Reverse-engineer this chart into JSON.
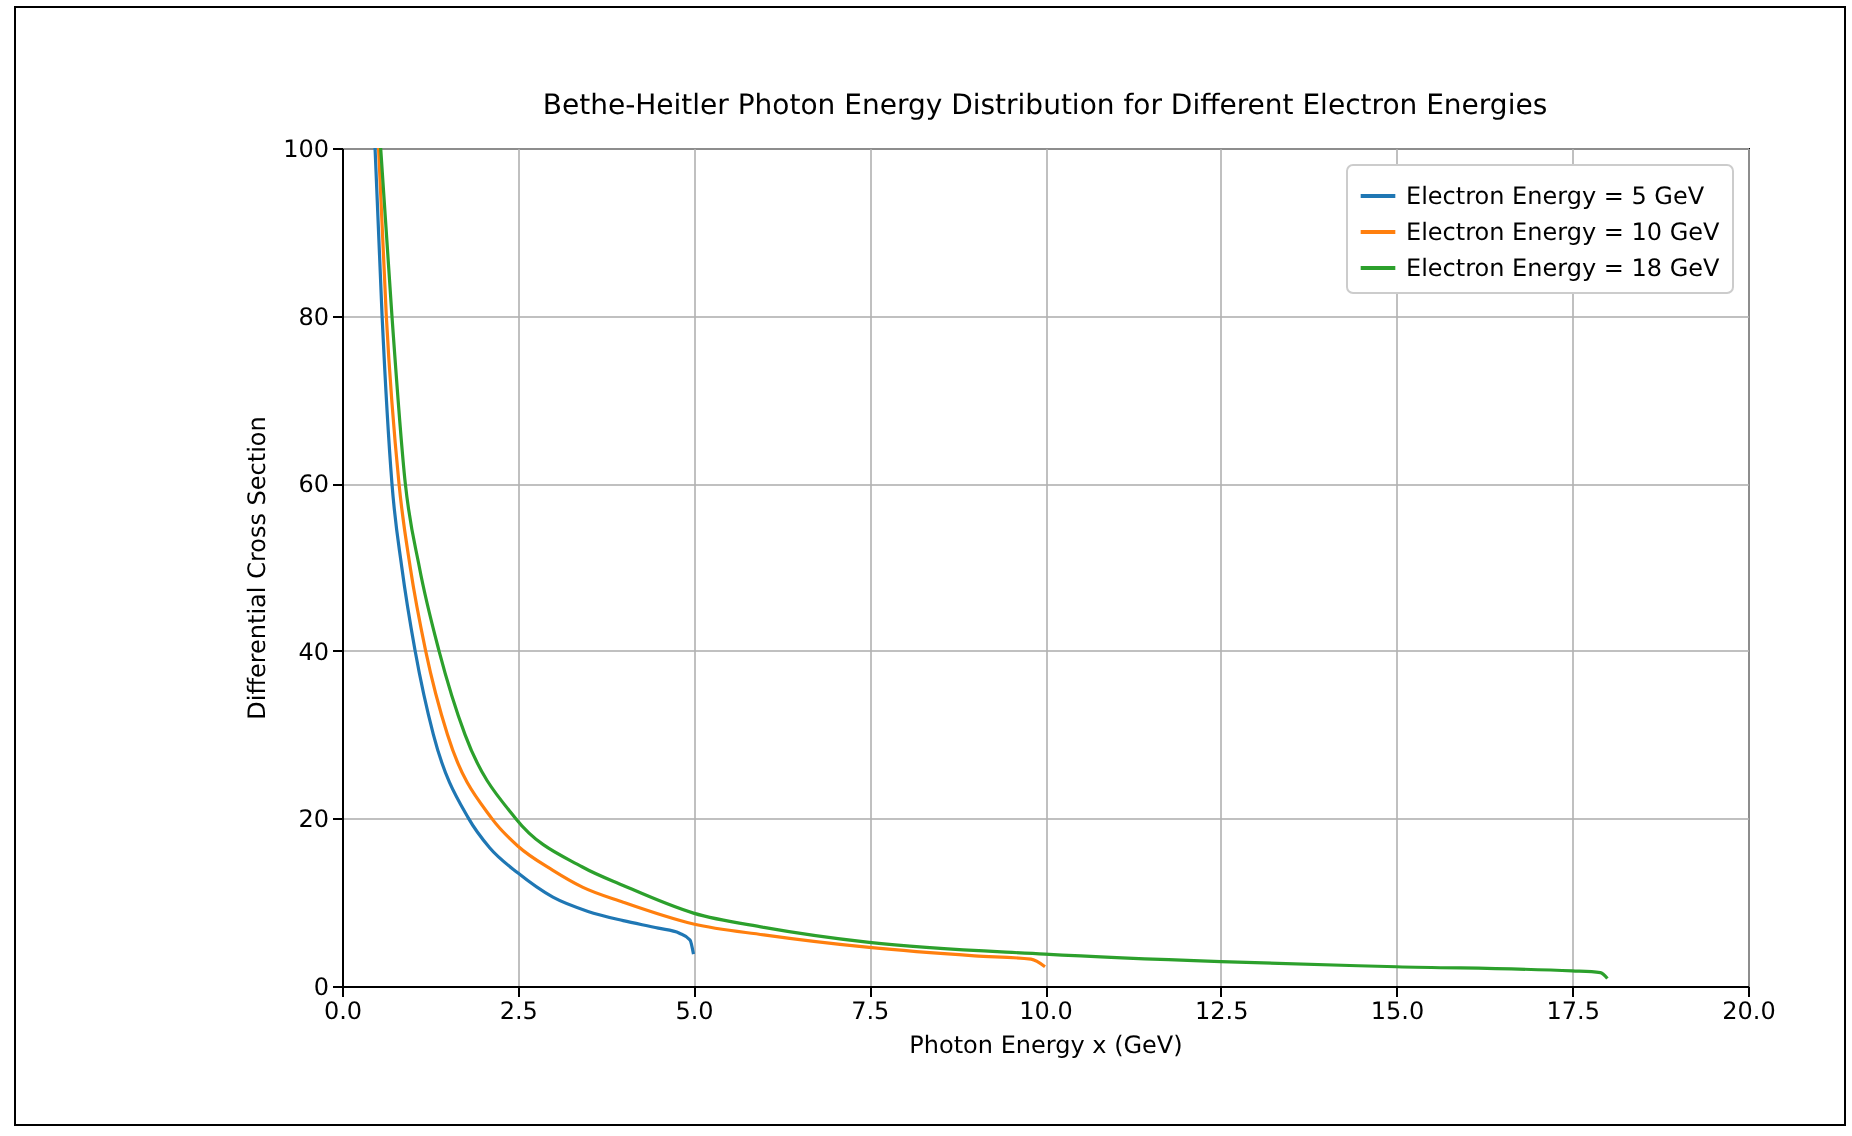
{
  "chart_data": {
    "type": "line",
    "title": "Bethe-Heitler Photon Energy Distribution for Different Electron Energies",
    "xlabel": "Photon Energy x (GeV)",
    "ylabel": "Differential Cross Section",
    "xlim": [
      0,
      20
    ],
    "xticks": [
      {
        "value": 0,
        "label": "0.0"
      },
      {
        "value": 2.5,
        "label": "2.5"
      },
      {
        "value": 5,
        "label": "5.0"
      },
      {
        "value": 7.5,
        "label": "7.5"
      },
      {
        "value": 10,
        "label": "10.0"
      },
      {
        "value": 12.5,
        "label": "12.5"
      },
      {
        "value": 15,
        "label": "15.0"
      },
      {
        "value": 17.5,
        "label": "17.5"
      },
      {
        "value": 20,
        "label": "20.0"
      }
    ],
    "ylim": [
      0,
      100
    ],
    "yticks": [
      0,
      20,
      40,
      60,
      80,
      100
    ],
    "grid": true,
    "legend": "top right",
    "series": [
      {
        "name": "Electron Energy = 5 GeV",
        "color": "#1f77b4",
        "x": [
          0.47,
          0.57,
          0.71,
          0.85,
          1.04,
          1.3,
          1.8,
          2.1,
          2.5,
          3.0,
          3.5,
          4.0,
          4.5,
          4.8,
          4.95,
          5.0
        ],
        "values": [
          100,
          80,
          60,
          50,
          40,
          30,
          20,
          16.5,
          13.5,
          10.6,
          8.9,
          7.8,
          6.9,
          6.3,
          5.5,
          3.8
        ]
      },
      {
        "name": "Electron Energy = 10 GeV",
        "color": "#ff7f0e",
        "x": [
          0.52,
          0.63,
          0.81,
          0.97,
          1.19,
          1.5,
          2.13,
          2.5,
          3.0,
          3.42,
          4.0,
          5.0,
          6.0,
          7.5,
          9.0,
          9.8,
          10.0
        ],
        "values": [
          100,
          80,
          60,
          50,
          40,
          30,
          20,
          16.7,
          13.8,
          11.8,
          10.0,
          7.4,
          6.1,
          4.6,
          3.6,
          3.2,
          2.3
        ]
      },
      {
        "name": "Electron Energy = 18 GeV",
        "color": "#2ca02c",
        "x": [
          0.55,
          0.71,
          0.9,
          1.1,
          1.38,
          1.75,
          2.47,
          3.42,
          4.0,
          5.0,
          6.0,
          7.5,
          10,
          12.5,
          15,
          17.5,
          17.9,
          18.0
        ],
        "values": [
          100,
          80,
          60,
          50,
          40,
          30,
          20,
          14.2,
          12.0,
          8.7,
          7.0,
          5.2,
          3.8,
          2.9,
          2.3,
          1.8,
          1.6,
          0.9
        ]
      }
    ]
  }
}
